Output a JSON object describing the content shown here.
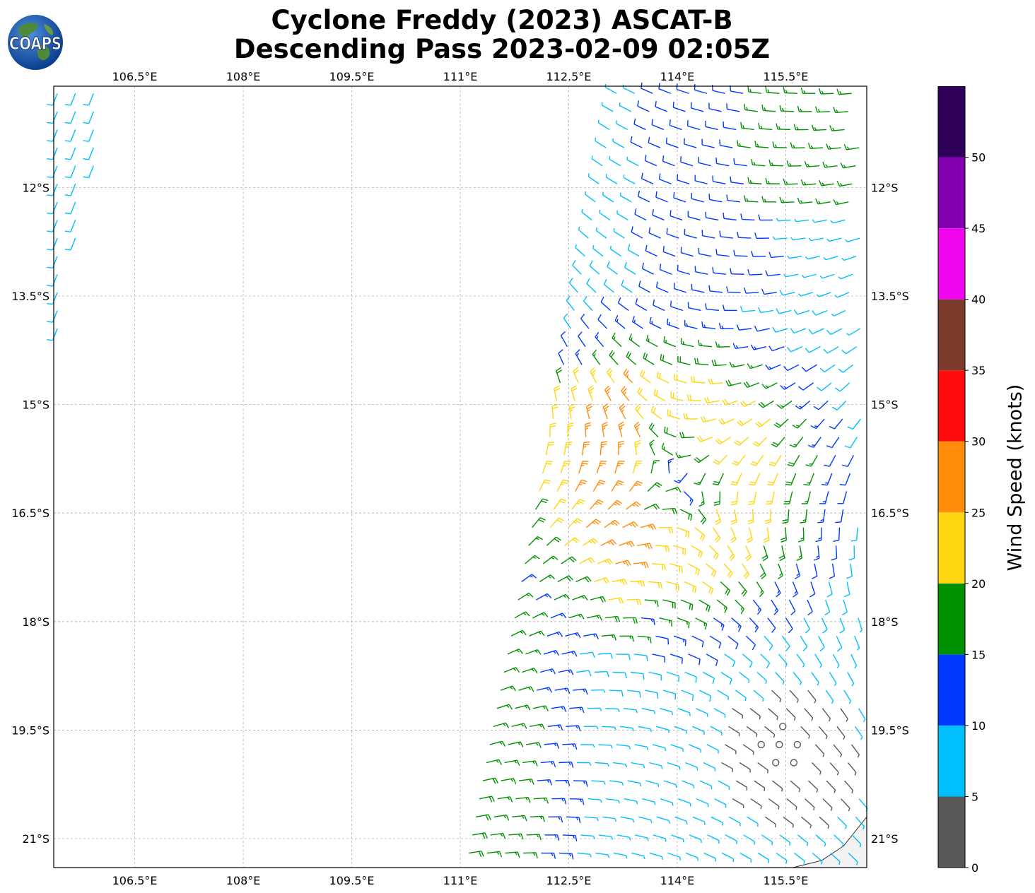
{
  "title_line1": "Cyclone Freddy (2023) ASCAT-B",
  "title_line2": "Descending Pass 2023-02-09 02:05Z",
  "logo_text": "COAPS",
  "colorbar": {
    "label": "Wind Speed (knots)",
    "ticks": [
      "0",
      "5",
      "10",
      "15",
      "20",
      "25",
      "30",
      "35",
      "40",
      "45",
      "50"
    ],
    "bins": [
      {
        "min": 0,
        "max": 5,
        "color": "#595959"
      },
      {
        "min": 5,
        "max": 10,
        "color": "#00bfff"
      },
      {
        "min": 10,
        "max": 15,
        "color": "#0038ff"
      },
      {
        "min": 15,
        "max": 20,
        "color": "#009100"
      },
      {
        "min": 20,
        "max": 25,
        "color": "#ffd60e"
      },
      {
        "min": 25,
        "max": 30,
        "color": "#ff8c0a"
      },
      {
        "min": 30,
        "max": 35,
        "color": "#ff0d0d"
      },
      {
        "min": 35,
        "max": 40,
        "color": "#7c3b2b"
      },
      {
        "min": 40,
        "max": 45,
        "color": "#f007f0"
      },
      {
        "min": 45,
        "max": 50,
        "color": "#8000b0"
      },
      {
        "min": 50,
        "max": 55,
        "color": "#2e005a"
      }
    ]
  },
  "chart_data": {
    "type": "wind-barb map",
    "title": "Cyclone Freddy (2023) ASCAT-B Descending Pass 2023-02-09 02:05Z",
    "xlim": [
      105.38,
      116.62
    ],
    "ylim": [
      -21.4,
      -10.6
    ],
    "x_ticks": [
      106.5,
      108,
      109.5,
      111,
      112.5,
      114,
      115.5
    ],
    "x_tick_labels": [
      "106.5°E",
      "108°E",
      "109.5°E",
      "111°E",
      "112.5°E",
      "114°E",
      "115.5°E"
    ],
    "y_ticks": [
      -12,
      -13.5,
      -15,
      -16.5,
      -18,
      -19.5,
      -21
    ],
    "y_tick_labels": [
      "12°S",
      "13.5°S",
      "15°S",
      "16.5°S",
      "18°S",
      "19.5°S",
      "21°S"
    ],
    "grid": true,
    "units": "knots",
    "cyclone_center_approx": {
      "lon": 114.0,
      "lat": -16.0
    },
    "calm_center_approx": {
      "lon": 115.5,
      "lat": -19.8
    },
    "coastline": [
      [
        115.6,
        -21.4
      ],
      [
        116.0,
        -21.3
      ],
      [
        116.3,
        -21.1
      ],
      [
        116.62,
        -20.7
      ]
    ],
    "swaths": [
      {
        "name": "west",
        "lon_min_south": 105.38,
        "lon_max_south": 105.38,
        "lon_min_north": 105.38,
        "lon_max_north": 106.2,
        "lat_top": -10.6,
        "lat_bottom": -14.1,
        "wind_speed_range": [
          5,
          14
        ]
      },
      {
        "name": "east",
        "lon_min_north": 113.1,
        "lon_min_south": 111.0,
        "lat_top": -10.6,
        "lat_bottom": -21.4,
        "wind_speed_range": [
          0,
          25
        ]
      }
    ]
  }
}
